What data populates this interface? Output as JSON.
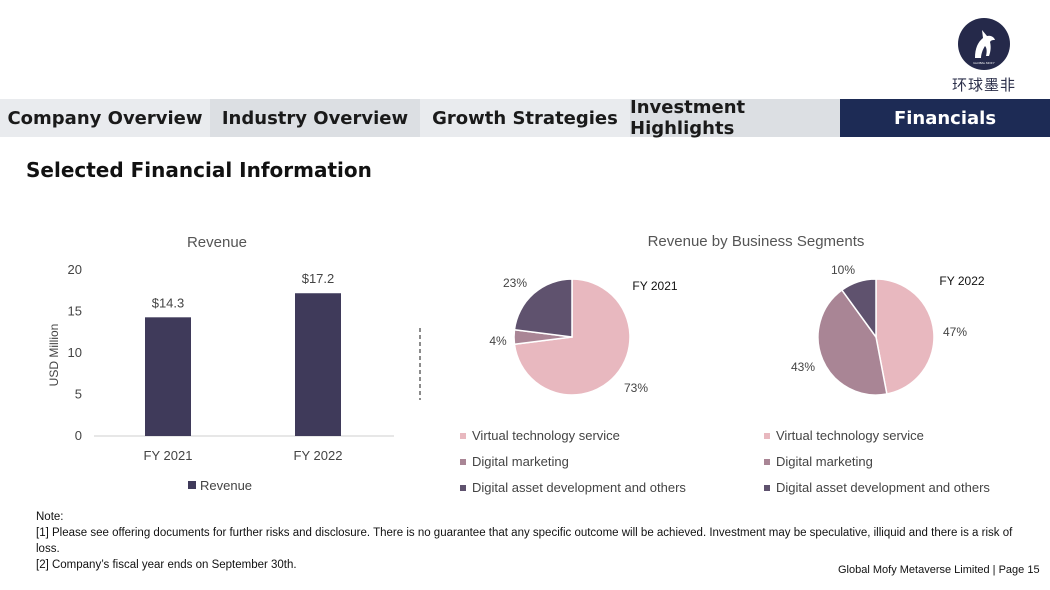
{
  "logo": {
    "text": "环球墨非",
    "small_text": "GLOBAL MOFY"
  },
  "nav": {
    "tabs": [
      {
        "label": "Company Overview"
      },
      {
        "label": "Industry Overview"
      },
      {
        "label": "Growth Strategies"
      },
      {
        "label": "Investment Highlights"
      },
      {
        "label": "Financials"
      }
    ],
    "active": "Financials"
  },
  "page_title": "Selected Financial Information",
  "chart_data": [
    {
      "type": "bar",
      "title": "Revenue",
      "ylabel": "USD Million",
      "categories": [
        "FY 2021",
        "FY 2022"
      ],
      "series": [
        {
          "name": "Revenue",
          "values": [
            14.3,
            17.2
          ],
          "labels": [
            "$14.3",
            "$17.2"
          ],
          "color": "#3f3a5a"
        }
      ],
      "ylim": [
        0,
        20
      ],
      "yticks": [
        0,
        5,
        10,
        15,
        20
      ],
      "legend": "bottom",
      "grid": false
    },
    {
      "type": "pie",
      "title": "Revenue by Business Segments",
      "subtitle": "FY 2021",
      "categories": [
        "Virtual technology service",
        "Digital marketing",
        "Digital asset development and others"
      ],
      "values": [
        73,
        4,
        23
      ],
      "labels": [
        "73%",
        "4%",
        "23%"
      ],
      "colors": [
        "#e8b8bf",
        "#a98595",
        "#5f526e"
      ],
      "legend": "bottom"
    },
    {
      "type": "pie",
      "subtitle": "FY 2022",
      "categories": [
        "Virtual technology service",
        "Digital marketing",
        "Digital asset development and others"
      ],
      "values": [
        47,
        43,
        10
      ],
      "labels": [
        "47%",
        "43%",
        "10%"
      ],
      "colors": [
        "#e8b8bf",
        "#a98595",
        "#5f526e"
      ],
      "legend": "bottom"
    }
  ],
  "note": {
    "heading": "Note:",
    "lines": [
      "[1] Please see offering documents for further risks and disclosure. There is no guarantee that any specific outcome will be achieved. Investment may be speculative, illiquid and there is a risk of loss.",
      "[2] Company’s fiscal year ends on September 30th."
    ]
  },
  "footer": "Global Mofy Metaverse Limited | Page 15"
}
